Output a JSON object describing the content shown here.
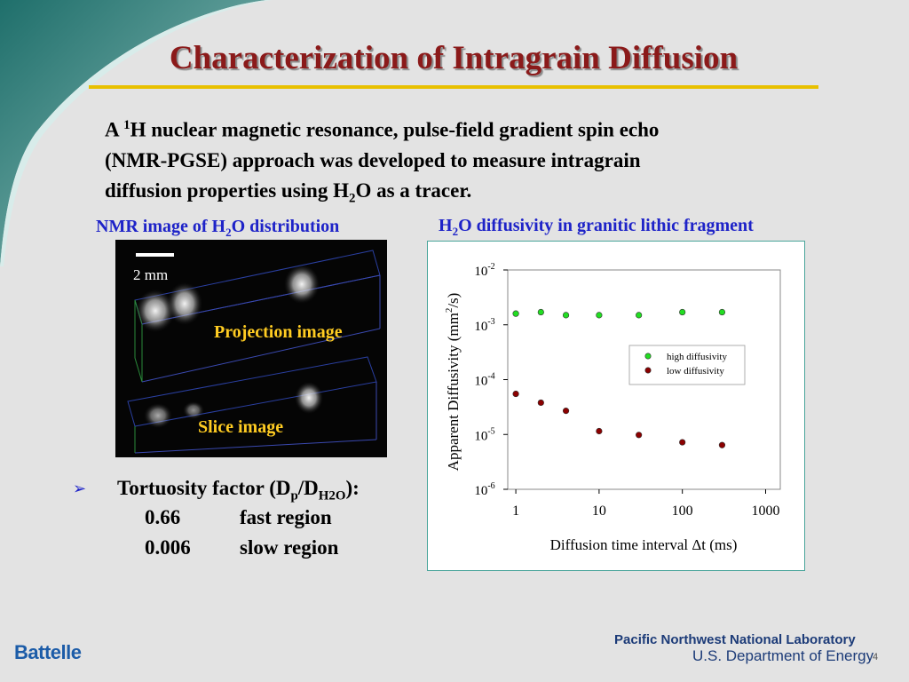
{
  "slide": {
    "title": "Characterization of Intragrain Diffusion",
    "intro": {
      "line1_a": "A ",
      "line1_sup": "1",
      "line1_b": "H nuclear magnetic resonance, pulse-field gradient spin echo",
      "line2": "(NMR-PGSE) approach was developed to measure intragrain",
      "line3_a": "diffusion properties using H",
      "line3_sub": "2",
      "line3_b": "O as a tracer."
    },
    "nmr_caption": {
      "a": "NMR image of H",
      "sub": "2",
      "b": "O distribution"
    },
    "chart_caption": {
      "a": "H",
      "sub": "2",
      "b": "O diffusivity in granitic lithic fragment"
    },
    "nmr_image": {
      "scale_label": "2 mm",
      "projection_label": "Projection image",
      "slice_label": "Slice image"
    },
    "tortuosity": {
      "heading_a": "Tortuosity factor (D",
      "heading_sub1": "p",
      "heading_b": "/D",
      "heading_sub2": "H2O",
      "heading_c": "):",
      "rows": [
        {
          "value": "0.66",
          "label": "fast region"
        },
        {
          "value": "0.006",
          "label": "slow region"
        }
      ]
    },
    "footer": {
      "logo": "Battelle",
      "lab": "Pacific Northwest National Laboratory",
      "doe": "U.S. Department of Energy",
      "page": "4"
    },
    "colors": {
      "title": "#8b1a1a",
      "rule": "#e8c000",
      "caption": "#1e23c8",
      "high": "#22dd22",
      "low": "#8b0000"
    }
  },
  "chart_data": {
    "type": "scatter",
    "xlabel": "Diffusion time interval Δt (ms)",
    "ylabel_a": "Apparent Diffusivity (mm",
    "ylabel_sup": "2",
    "ylabel_b": "/s)",
    "xscale": "log",
    "yscale": "log",
    "xlim": [
      0.8,
      1500
    ],
    "ylim": [
      1e-06,
      0.01
    ],
    "x_ticks": [
      1,
      10,
      100,
      1000
    ],
    "x_tick_labels": [
      "1",
      "10",
      "100",
      "1000"
    ],
    "y_ticks": [
      0.01,
      0.001,
      0.0001,
      1e-05,
      1e-06
    ],
    "y_tick_labels": [
      {
        "base": "10",
        "exp": "-2"
      },
      {
        "base": "10",
        "exp": "-3"
      },
      {
        "base": "10",
        "exp": "-4"
      },
      {
        "base": "10",
        "exp": "-5"
      },
      {
        "base": "10",
        "exp": "-6"
      }
    ],
    "legend_position": "right",
    "grid": false,
    "series": [
      {
        "name": "high diffusivity",
        "color": "#22dd22",
        "x": [
          1,
          2,
          4,
          10,
          30,
          100,
          300
        ],
        "y": [
          0.0016,
          0.0017,
          0.0015,
          0.0015,
          0.0015,
          0.0017,
          0.0017
        ]
      },
      {
        "name": "low diffusivity",
        "color": "#8b0000",
        "x": [
          1,
          2,
          4,
          10,
          30,
          100,
          300
        ],
        "y": [
          5.5e-05,
          3.8e-05,
          2.7e-05,
          1.15e-05,
          9.8e-06,
          7.2e-06,
          6.4e-06
        ]
      }
    ]
  }
}
